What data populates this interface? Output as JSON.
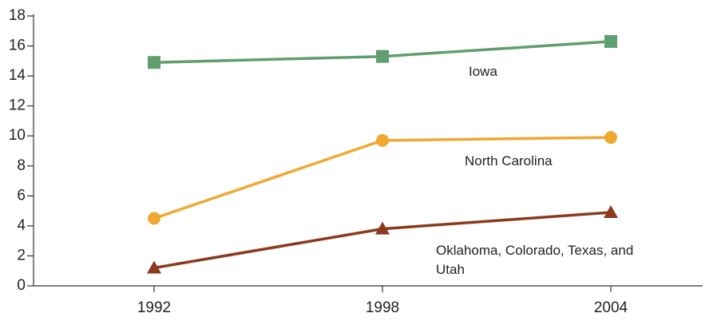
{
  "chart_data": {
    "type": "line",
    "categories": [
      "1992",
      "1998",
      "2004"
    ],
    "series": [
      {
        "name": "Iowa",
        "color": "#5f9e6e",
        "marker": "square",
        "values": [
          14.9,
          15.3,
          16.3
        ]
      },
      {
        "name": "North Carolina",
        "color": "#f0a830",
        "marker": "circle",
        "values": [
          4.5,
          9.7,
          9.9
        ]
      },
      {
        "name": "Oklahoma, Colorado, Texas, and Utah",
        "color": "#8b3a1e",
        "marker": "triangle",
        "values": [
          1.2,
          3.8,
          4.9
        ]
      }
    ],
    "ylim": [
      0,
      18
    ],
    "yticks": [
      0,
      2,
      4,
      6,
      8,
      10,
      12,
      14,
      16,
      18
    ],
    "grid": false
  }
}
